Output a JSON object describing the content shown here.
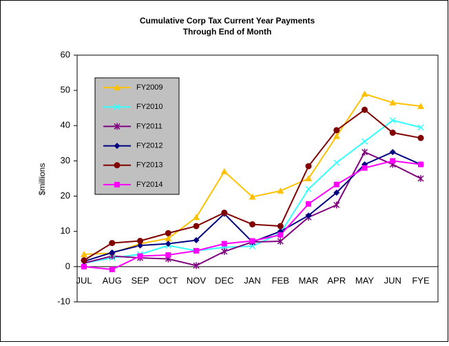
{
  "chart_data": {
    "type": "line",
    "title": [
      "Cumulative Corp Tax Current Year Payments",
      "Through End of Month"
    ],
    "y_label": "$millions",
    "categories": [
      "JUL",
      "AUG",
      "SEP",
      "OCT",
      "NOV",
      "DEC",
      "JAN",
      "FEB",
      "MAR",
      "APR",
      "MAY",
      "JUN",
      "FYE"
    ],
    "ylim": [
      -10,
      60
    ],
    "yticks": [
      -10,
      0,
      10,
      20,
      30,
      40,
      50,
      60
    ],
    "grid": false,
    "series": [
      {
        "name": "FY2009",
        "color": "#FFC000",
        "marker": "triangle",
        "values": [
          3.5,
          3.8,
          6.5,
          8,
          14,
          27,
          19.8,
          21.5,
          25,
          37,
          49,
          46.5,
          45.5
        ]
      },
      {
        "name": "FY2010",
        "color": "#33FFFF",
        "marker": "x",
        "values": [
          1,
          2.5,
          3.5,
          6,
          4.5,
          5.5,
          5.8,
          9.5,
          22,
          29.5,
          35.5,
          41.5,
          39.5
        ]
      },
      {
        "name": "FY2011",
        "color": "#800080",
        "marker": "star",
        "values": [
          1,
          3,
          2.5,
          2.2,
          0.3,
          4.3,
          7,
          7.2,
          14,
          17.5,
          32.5,
          29,
          25
        ]
      },
      {
        "name": "FY2012",
        "color": "#000080",
        "marker": "diamond",
        "values": [
          1.5,
          4,
          6,
          6.5,
          7.5,
          15,
          7,
          10,
          14.5,
          21,
          29,
          32.5,
          29
        ]
      },
      {
        "name": "FY2013",
        "color": "#800000",
        "marker": "circle",
        "values": [
          1.8,
          6.7,
          7.3,
          9.5,
          11.5,
          15.3,
          12,
          11.5,
          28.5,
          38.7,
          44.5,
          38,
          36.5
        ]
      },
      {
        "name": "FY2014",
        "color": "#FF00FF",
        "marker": "square",
        "values": [
          0,
          -0.8,
          3,
          3.3,
          4.5,
          6.5,
          7.3,
          9,
          17.8,
          23.3,
          28,
          30,
          29
        ]
      }
    ]
  }
}
